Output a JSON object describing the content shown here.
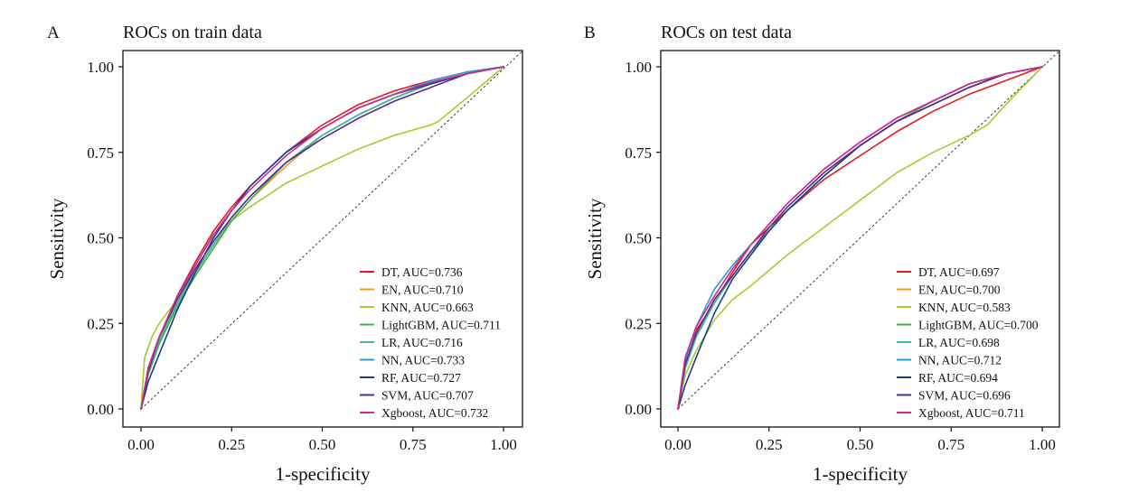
{
  "chart_data": [
    {
      "panel": "A",
      "title": "ROCs on train data",
      "type": "line",
      "xlabel": "1-specificity",
      "ylabel": "Sensitivity",
      "xlim": [
        0,
        1
      ],
      "ylim": [
        0,
        1
      ],
      "xticks": [
        "0.00",
        "0.25",
        "0.50",
        "0.75",
        "1.00"
      ],
      "yticks": [
        "0.00",
        "0.25",
        "0.50",
        "0.75",
        "1.00"
      ],
      "reference_line": "diagonal",
      "legend_position": "bottom-right",
      "series": [
        {
          "name": "DT, AUC=0.736",
          "color": "#e41a1c",
          "x": [
            0,
            0.02,
            0.05,
            0.1,
            0.15,
            0.2,
            0.25,
            0.3,
            0.4,
            0.5,
            0.6,
            0.7,
            0.8,
            0.9,
            1.0
          ],
          "y": [
            0,
            0.12,
            0.21,
            0.33,
            0.43,
            0.52,
            0.59,
            0.65,
            0.75,
            0.83,
            0.89,
            0.93,
            0.96,
            0.985,
            1.0
          ]
        },
        {
          "name": "EN, AUC=0.710",
          "color": "#f59d1a",
          "x": [
            0,
            0.02,
            0.05,
            0.1,
            0.15,
            0.2,
            0.25,
            0.3,
            0.4,
            0.5,
            0.6,
            0.7,
            0.8,
            0.9,
            1.0
          ],
          "y": [
            0,
            0.11,
            0.2,
            0.31,
            0.39,
            0.47,
            0.55,
            0.61,
            0.71,
            0.8,
            0.86,
            0.91,
            0.95,
            0.98,
            1.0
          ]
        },
        {
          "name": "KNN, AUC=0.663",
          "color": "#a6cc2d",
          "x": [
            0,
            0.01,
            0.03,
            0.05,
            0.1,
            0.15,
            0.2,
            0.25,
            0.3,
            0.4,
            0.5,
            0.6,
            0.7,
            0.8,
            0.82,
            0.9,
            1.0
          ],
          "y": [
            0,
            0.15,
            0.21,
            0.25,
            0.32,
            0.4,
            0.48,
            0.55,
            0.59,
            0.66,
            0.71,
            0.76,
            0.8,
            0.83,
            0.84,
            0.91,
            1.0
          ]
        },
        {
          "name": "LightGBM, AUC=0.711",
          "color": "#3cb04a",
          "x": [
            0,
            0.02,
            0.05,
            0.1,
            0.15,
            0.2,
            0.25,
            0.3,
            0.4,
            0.5,
            0.6,
            0.7,
            0.8,
            0.9,
            1.0
          ],
          "y": [
            0,
            0.1,
            0.19,
            0.3,
            0.39,
            0.47,
            0.55,
            0.61,
            0.72,
            0.8,
            0.86,
            0.91,
            0.95,
            0.98,
            1.0
          ]
        },
        {
          "name": "LR, AUC=0.716",
          "color": "#40b7a6",
          "x": [
            0,
            0.02,
            0.05,
            0.1,
            0.15,
            0.2,
            0.25,
            0.3,
            0.4,
            0.5,
            0.6,
            0.7,
            0.8,
            0.9,
            1.0
          ],
          "y": [
            0,
            0.11,
            0.2,
            0.31,
            0.4,
            0.48,
            0.56,
            0.62,
            0.72,
            0.8,
            0.86,
            0.91,
            0.95,
            0.98,
            1.0
          ]
        },
        {
          "name": "NN, AUC=0.733",
          "color": "#2a9fd6",
          "x": [
            0,
            0.02,
            0.05,
            0.1,
            0.15,
            0.2,
            0.25,
            0.3,
            0.4,
            0.5,
            0.6,
            0.7,
            0.8,
            0.9,
            1.0
          ],
          "y": [
            0,
            0.12,
            0.21,
            0.32,
            0.42,
            0.51,
            0.58,
            0.65,
            0.75,
            0.82,
            0.88,
            0.92,
            0.96,
            0.985,
            1.0
          ]
        },
        {
          "name": "RF, AUC=0.727",
          "color": "#1b3d8c",
          "x": [
            0,
            0.02,
            0.05,
            0.1,
            0.15,
            0.2,
            0.25,
            0.3,
            0.4,
            0.5,
            0.6,
            0.7,
            0.8,
            0.9,
            1.0
          ],
          "y": [
            0,
            0.08,
            0.16,
            0.29,
            0.4,
            0.5,
            0.58,
            0.65,
            0.75,
            0.82,
            0.88,
            0.92,
            0.95,
            0.98,
            1.0
          ]
        },
        {
          "name": "SVM, AUC=0.707",
          "color": "#5b2a8e",
          "x": [
            0,
            0.02,
            0.05,
            0.1,
            0.15,
            0.2,
            0.25,
            0.3,
            0.4,
            0.5,
            0.6,
            0.7,
            0.8,
            0.9,
            1.0
          ],
          "y": [
            0,
            0.11,
            0.21,
            0.32,
            0.41,
            0.49,
            0.56,
            0.62,
            0.72,
            0.79,
            0.85,
            0.9,
            0.94,
            0.98,
            1.0
          ]
        },
        {
          "name": "Xgboost, AUC=0.732",
          "color": "#d6278f",
          "x": [
            0,
            0.02,
            0.05,
            0.1,
            0.15,
            0.2,
            0.25,
            0.3,
            0.4,
            0.5,
            0.6,
            0.7,
            0.8,
            0.9,
            1.0
          ],
          "y": [
            0,
            0.12,
            0.21,
            0.33,
            0.42,
            0.51,
            0.58,
            0.64,
            0.74,
            0.82,
            0.88,
            0.92,
            0.955,
            0.98,
            1.0
          ]
        }
      ]
    },
    {
      "panel": "B",
      "title": "ROCs on test data",
      "type": "line",
      "xlabel": "1-specificity",
      "ylabel": "Sensitivity",
      "xlim": [
        0,
        1
      ],
      "ylim": [
        0,
        1
      ],
      "xticks": [
        "0.00",
        "0.25",
        "0.50",
        "0.75",
        "1.00"
      ],
      "yticks": [
        "0.00",
        "0.25",
        "0.50",
        "0.75",
        "1.00"
      ],
      "reference_line": "diagonal",
      "legend_position": "bottom-right",
      "series": [
        {
          "name": "DT, AUC=0.697",
          "color": "#e41a1c",
          "x": [
            0,
            0.02,
            0.05,
            0.1,
            0.15,
            0.2,
            0.25,
            0.3,
            0.4,
            0.5,
            0.6,
            0.7,
            0.8,
            0.9,
            1.0
          ],
          "y": [
            0,
            0.15,
            0.23,
            0.31,
            0.4,
            0.48,
            0.53,
            0.58,
            0.67,
            0.74,
            0.81,
            0.87,
            0.92,
            0.96,
            1.0
          ]
        },
        {
          "name": "EN, AUC=0.700",
          "color": "#f59d1a",
          "x": [
            0,
            0.02,
            0.05,
            0.1,
            0.15,
            0.2,
            0.25,
            0.3,
            0.4,
            0.5,
            0.6,
            0.7,
            0.8,
            0.9,
            1.0
          ],
          "y": [
            0,
            0.13,
            0.21,
            0.31,
            0.39,
            0.46,
            0.52,
            0.58,
            0.68,
            0.77,
            0.84,
            0.9,
            0.95,
            0.98,
            1.0
          ]
        },
        {
          "name": "KNN, AUC=0.583",
          "color": "#a6cc2d",
          "x": [
            0,
            0.02,
            0.05,
            0.1,
            0.15,
            0.2,
            0.3,
            0.4,
            0.5,
            0.6,
            0.7,
            0.8,
            0.85,
            0.9,
            1.0
          ],
          "y": [
            0,
            0.1,
            0.17,
            0.26,
            0.32,
            0.36,
            0.45,
            0.53,
            0.61,
            0.69,
            0.75,
            0.8,
            0.83,
            0.89,
            1.0
          ]
        },
        {
          "name": "LightGBM, AUC=0.700",
          "color": "#3cb04a",
          "x": [
            0,
            0.02,
            0.05,
            0.1,
            0.15,
            0.2,
            0.25,
            0.3,
            0.4,
            0.5,
            0.6,
            0.7,
            0.8,
            0.9,
            1.0
          ],
          "y": [
            0,
            0.12,
            0.21,
            0.31,
            0.39,
            0.46,
            0.52,
            0.58,
            0.68,
            0.77,
            0.84,
            0.9,
            0.95,
            0.98,
            1.0
          ]
        },
        {
          "name": "LR, AUC=0.698",
          "color": "#40b7a6",
          "x": [
            0,
            0.02,
            0.05,
            0.1,
            0.15,
            0.2,
            0.25,
            0.3,
            0.4,
            0.5,
            0.6,
            0.7,
            0.8,
            0.9,
            1.0
          ],
          "y": [
            0,
            0.12,
            0.21,
            0.31,
            0.39,
            0.46,
            0.52,
            0.58,
            0.68,
            0.77,
            0.84,
            0.89,
            0.94,
            0.98,
            1.0
          ]
        },
        {
          "name": "NN, AUC=0.712",
          "color": "#2a9fd6",
          "x": [
            0,
            0.02,
            0.05,
            0.1,
            0.15,
            0.2,
            0.25,
            0.3,
            0.4,
            0.5,
            0.6,
            0.7,
            0.8,
            0.9,
            1.0
          ],
          "y": [
            0,
            0.14,
            0.24,
            0.35,
            0.42,
            0.48,
            0.54,
            0.6,
            0.7,
            0.78,
            0.85,
            0.9,
            0.95,
            0.98,
            1.0
          ]
        },
        {
          "name": "RF, AUC=0.694",
          "color": "#1b3d8c",
          "x": [
            0,
            0.02,
            0.05,
            0.1,
            0.15,
            0.2,
            0.25,
            0.3,
            0.4,
            0.5,
            0.6,
            0.7,
            0.8,
            0.9,
            1.0
          ],
          "y": [
            0,
            0.07,
            0.15,
            0.28,
            0.38,
            0.45,
            0.52,
            0.58,
            0.68,
            0.77,
            0.84,
            0.89,
            0.94,
            0.98,
            1.0
          ]
        },
        {
          "name": "SVM, AUC=0.696",
          "color": "#5b2a8e",
          "x": [
            0,
            0.02,
            0.05,
            0.1,
            0.15,
            0.2,
            0.25,
            0.3,
            0.4,
            0.5,
            0.6,
            0.7,
            0.8,
            0.9,
            1.0
          ],
          "y": [
            0,
            0.13,
            0.22,
            0.32,
            0.39,
            0.46,
            0.53,
            0.59,
            0.69,
            0.77,
            0.84,
            0.89,
            0.94,
            0.98,
            1.0
          ]
        },
        {
          "name": "Xgboost, AUC=0.711",
          "color": "#d6278f",
          "x": [
            0,
            0.02,
            0.05,
            0.1,
            0.15,
            0.2,
            0.25,
            0.3,
            0.4,
            0.5,
            0.6,
            0.7,
            0.8,
            0.9,
            1.0
          ],
          "y": [
            0,
            0.15,
            0.24,
            0.33,
            0.41,
            0.48,
            0.54,
            0.6,
            0.7,
            0.78,
            0.85,
            0.9,
            0.95,
            0.98,
            1.0
          ]
        }
      ]
    }
  ]
}
